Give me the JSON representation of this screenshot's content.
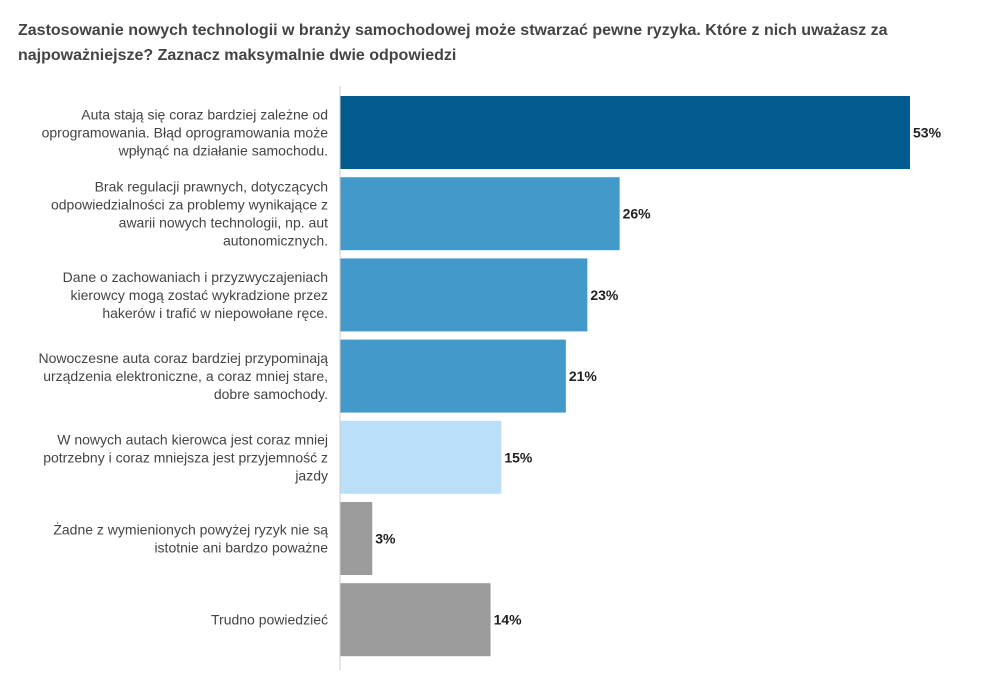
{
  "chart_data": {
    "type": "bar",
    "orientation": "horizontal",
    "title": "Zastosowanie nowych technologii w branży samochodowej może stwarzać pewne ryzyka. Które z nich uważasz za najpoważniejsze? Zaznacz maksymalnie dwie odpowiedzi",
    "categories": [
      "Auta stają się coraz bardziej zależne od oprogramowania. Błąd oprogramowania może wpłynąć na działanie samochodu.",
      "Brak regulacji prawnych, dotyczących odpowiedzialności za problemy wynikające z awarii nowych technologii, np. aut autonomicznych.",
      "Dane o zachowaniach i przyzwyczajeniach kierowcy mogą zostać wykradzione przez hakerów i trafić w niepowołane ręce.",
      "Nowoczesne auta coraz bardziej przypominają urządzenia elektroniczne, a coraz mniej stare, dobre samochody.",
      "W nowych autach kierowca jest coraz mniej potrzebny i coraz mniejsza jest przyjemność z jazdy",
      "Żadne z wymienionych powyżej ryzyk nie są istotnie ani bardzo poważne",
      "Trudno powiedzieć"
    ],
    "category_lines": [
      [
        "Auta stają się coraz bardziej zależne od",
        "oprogramowania. Błąd oprogramowania może",
        "wpłynąć na działanie samochodu."
      ],
      [
        "Brak regulacji prawnych, dotyczących",
        "odpowiedzialności za problemy wynikające z",
        "awarii nowych technologii, np. aut",
        "autonomicznych."
      ],
      [
        "Dane o zachowaniach i przyzwyczajeniach",
        "kierowcy mogą zostać wykradzione przez",
        "hakerów i trafić w niepowołane ręce."
      ],
      [
        "Nowoczesne auta coraz bardziej przypominają",
        "urządzenia elektroniczne, a coraz mniej stare,",
        "dobre samochody."
      ],
      [
        "W nowych autach kierowca jest coraz mniej",
        "potrzebny i coraz mniejsza jest przyjemność z",
        "jazdy"
      ],
      [
        "Żadne z wymienionych powyżej ryzyk nie są",
        "istotnie ani bardzo poważne"
      ],
      [
        "Trudno powiedzieć"
      ]
    ],
    "values": [
      53,
      26,
      23,
      21,
      15,
      3,
      14
    ],
    "value_labels": [
      "53%",
      "26%",
      "23%",
      "21%",
      "15%",
      "3%",
      "14%"
    ],
    "colors": [
      "#025a8e",
      "#4399c9",
      "#4399c9",
      "#4399c9",
      "#bbdff8",
      "#9b9b9b",
      "#9b9b9b"
    ],
    "xlim": [
      0,
      53
    ],
    "grid": false,
    "legend": "none"
  }
}
